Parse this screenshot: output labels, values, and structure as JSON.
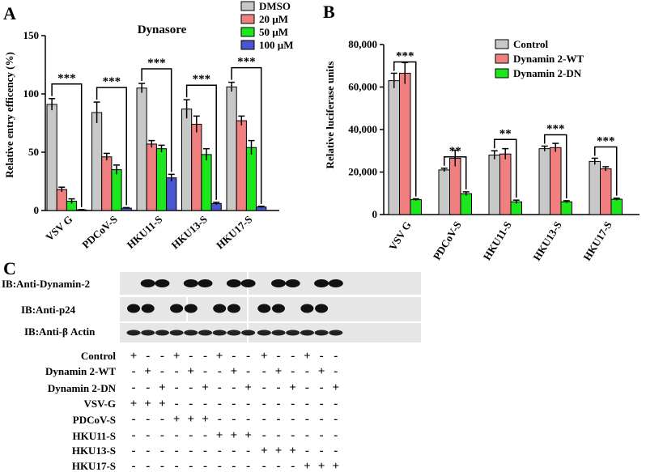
{
  "panel_labels": {
    "a": "A",
    "b": "B",
    "c": "C"
  },
  "chart_data": [
    {
      "type": "bar",
      "title": "Dynasore",
      "xlabel": "",
      "ylabel": "Relative entry efficency (%)",
      "ylim": [
        0,
        150
      ],
      "yticks": [
        "0",
        "50",
        "100",
        "150"
      ],
      "categories": [
        "VSV G",
        "PDCoV-S",
        "HKU11-S",
        "HKU13-S",
        "HKU17-S"
      ],
      "series": [
        {
          "name": "DMSO",
          "color": "#c8c8c8",
          "values": [
            91,
            84,
            105,
            87,
            106
          ],
          "errors": [
            5,
            9,
            4,
            8,
            4
          ]
        },
        {
          "name": "20 µM",
          "color": "#f08080",
          "values": [
            18,
            46,
            57,
            74,
            77
          ],
          "errors": [
            2,
            3,
            3,
            7,
            4
          ]
        },
        {
          "name": "50 µM",
          "color": "#1ee61e",
          "values": [
            8,
            35,
            53,
            48,
            54
          ],
          "errors": [
            2,
            4,
            3,
            5,
            6
          ]
        },
        {
          "name": "100 µM",
          "color": "#4a55d0",
          "values": [
            0.5,
            2,
            28,
            6,
            3
          ],
          "errors": [
            0.3,
            0.5,
            3,
            1,
            0.6
          ]
        }
      ],
      "significance": [
        "***",
        "***",
        "***",
        "***",
        "***"
      ],
      "grid": false,
      "legend_position": "top-right"
    },
    {
      "type": "bar",
      "title": "",
      "xlabel": "",
      "ylabel": "Relative luciferase units",
      "ylim": [
        0,
        80000
      ],
      "yticks": [
        "0",
        "20,000",
        "40,000",
        "60,000",
        "80,000"
      ],
      "categories": [
        "VSV G",
        "PDCoV-S",
        "HKU11-S",
        "HKU13-S",
        "HKU17-S"
      ],
      "series": [
        {
          "name": "Control",
          "color": "#c8c8c8",
          "values": [
            63000,
            21000,
            28000,
            31000,
            25000
          ],
          "errors": [
            3500,
            800,
            2000,
            1200,
            1500
          ]
        },
        {
          "name": "Dynamin 2-WT",
          "color": "#f08080",
          "values": [
            66500,
            26500,
            28500,
            31500,
            21500
          ],
          "errors": [
            5000,
            3800,
            2500,
            2000,
            1000
          ]
        },
        {
          "name": "Dynamin 2-DN",
          "color": "#1ee61e",
          "values": [
            7000,
            9800,
            6000,
            6000,
            7200
          ],
          "errors": [
            400,
            900,
            800,
            500,
            500
          ]
        }
      ],
      "significance": [
        "***",
        "**",
        "**",
        "***",
        "***"
      ],
      "grid": false,
      "legend_position": "top-right"
    }
  ],
  "western_blot": {
    "blot_labels": [
      "IB:Anti-Dynamin-2",
      "IB:Anti-p24",
      "IB:Anti-β Actin"
    ],
    "row_labels": [
      "Control",
      "Dynamin 2-WT",
      "Dynamin 2-DN",
      "VSV-G",
      "PDCoV-S",
      "HKU11-S",
      "HKU13-S",
      "HKU17-S"
    ],
    "matrix": [
      [
        "+",
        "-",
        "-",
        "+",
        "-",
        "-",
        "+",
        "-",
        "-",
        "+",
        "-",
        "-",
        "+",
        "-",
        "-"
      ],
      [
        "-",
        "+",
        "-",
        "-",
        "+",
        "-",
        "-",
        "+",
        "-",
        "-",
        "+",
        "-",
        "-",
        "+",
        "-"
      ],
      [
        "-",
        "-",
        "+",
        "-",
        "-",
        "+",
        "-",
        "-",
        "+",
        "-",
        "-",
        "+",
        "-",
        "-",
        "+"
      ],
      [
        "+",
        "+",
        "+",
        "-",
        "-",
        "-",
        "-",
        "-",
        "-",
        "-",
        "-",
        "-",
        "-",
        "-",
        "-"
      ],
      [
        "-",
        "-",
        "-",
        "+",
        "+",
        "+",
        "-",
        "-",
        "-",
        "-",
        "-",
        "-",
        "-",
        "-",
        "-"
      ],
      [
        "-",
        "-",
        "-",
        "-",
        "-",
        "-",
        "+",
        "+",
        "+",
        "-",
        "-",
        "-",
        "-",
        "-",
        "-"
      ],
      [
        "-",
        "-",
        "-",
        "-",
        "-",
        "-",
        "-",
        "-",
        "-",
        "+",
        "+",
        "+",
        "-",
        "-",
        "-"
      ],
      [
        "-",
        "-",
        "-",
        "-",
        "-",
        "-",
        "-",
        "-",
        "-",
        "-",
        "-",
        "-",
        "+",
        "+",
        "+"
      ]
    ]
  }
}
